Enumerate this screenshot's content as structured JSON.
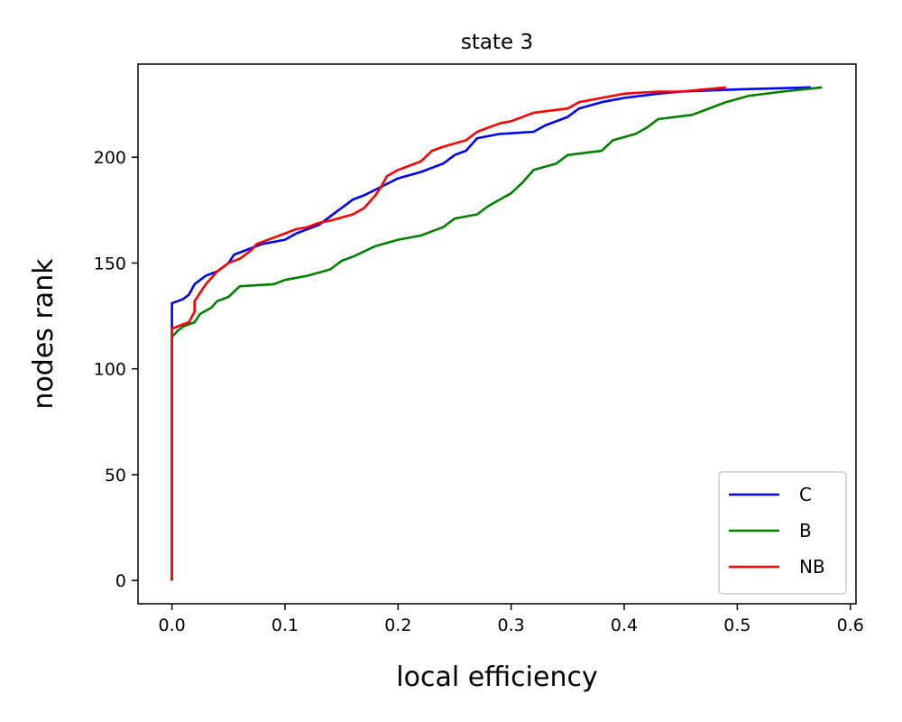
{
  "chart_data": {
    "type": "line",
    "title": "state 3",
    "xlabel": "local efficiency",
    "ylabel": "nodes rank",
    "xlim": [
      -0.03,
      0.605
    ],
    "ylim": [
      -11,
      244
    ],
    "xticks": [
      {
        "value": 0.0,
        "label": "0.0"
      },
      {
        "value": 0.1,
        "label": "0.1"
      },
      {
        "value": 0.2,
        "label": "0.2"
      },
      {
        "value": 0.3,
        "label": "0.3"
      },
      {
        "value": 0.4,
        "label": "0.4"
      },
      {
        "value": 0.5,
        "label": "0.5"
      },
      {
        "value": 0.6,
        "label": "0.6"
      }
    ],
    "yticks": [
      {
        "value": 0,
        "label": "0"
      },
      {
        "value": 50,
        "label": "50"
      },
      {
        "value": 100,
        "label": "100"
      },
      {
        "value": 150,
        "label": "150"
      },
      {
        "value": 200,
        "label": "200"
      }
    ],
    "grid": false,
    "legend": "lower-right",
    "series": [
      {
        "name": "C",
        "color": "#0000ff",
        "points": [
          [
            0,
            0
          ],
          [
            0,
            120
          ],
          [
            0,
            131
          ],
          [
            0.005,
            132
          ],
          [
            0.01,
            133
          ],
          [
            0.015,
            135
          ],
          [
            0.02,
            140
          ],
          [
            0.025,
            142
          ],
          [
            0.03,
            144
          ],
          [
            0.04,
            146
          ],
          [
            0.05,
            150
          ],
          [
            0.055,
            154
          ],
          [
            0.07,
            157
          ],
          [
            0.08,
            159
          ],
          [
            0.1,
            161
          ],
          [
            0.11,
            164
          ],
          [
            0.12,
            166
          ],
          [
            0.13,
            168
          ],
          [
            0.14,
            172
          ],
          [
            0.15,
            176
          ],
          [
            0.16,
            180
          ],
          [
            0.17,
            182
          ],
          [
            0.185,
            186
          ],
          [
            0.2,
            190
          ],
          [
            0.22,
            193
          ],
          [
            0.24,
            197
          ],
          [
            0.25,
            201
          ],
          [
            0.26,
            203
          ],
          [
            0.27,
            209
          ],
          [
            0.29,
            211
          ],
          [
            0.32,
            212
          ],
          [
            0.33,
            215
          ],
          [
            0.35,
            219
          ],
          [
            0.36,
            223
          ],
          [
            0.38,
            226
          ],
          [
            0.4,
            228
          ],
          [
            0.43,
            230
          ],
          [
            0.45,
            231
          ],
          [
            0.5,
            232
          ],
          [
            0.565,
            233
          ]
        ]
      },
      {
        "name": "B",
        "color": "#008000",
        "points": [
          [
            0,
            0
          ],
          [
            0,
            115
          ],
          [
            0.005,
            118
          ],
          [
            0.01,
            120
          ],
          [
            0.02,
            122
          ],
          [
            0.025,
            126
          ],
          [
            0.035,
            129
          ],
          [
            0.04,
            132
          ],
          [
            0.05,
            134
          ],
          [
            0.06,
            139
          ],
          [
            0.09,
            140
          ],
          [
            0.1,
            142
          ],
          [
            0.12,
            144
          ],
          [
            0.14,
            147
          ],
          [
            0.15,
            151
          ],
          [
            0.16,
            153
          ],
          [
            0.18,
            158
          ],
          [
            0.2,
            161
          ],
          [
            0.22,
            163
          ],
          [
            0.23,
            165
          ],
          [
            0.24,
            167
          ],
          [
            0.25,
            171
          ],
          [
            0.27,
            173
          ],
          [
            0.28,
            177
          ],
          [
            0.29,
            180
          ],
          [
            0.3,
            183
          ],
          [
            0.31,
            188
          ],
          [
            0.32,
            194
          ],
          [
            0.34,
            197
          ],
          [
            0.35,
            201
          ],
          [
            0.38,
            203
          ],
          [
            0.39,
            208
          ],
          [
            0.41,
            211
          ],
          [
            0.42,
            214
          ],
          [
            0.43,
            218
          ],
          [
            0.46,
            220
          ],
          [
            0.47,
            222
          ],
          [
            0.48,
            224
          ],
          [
            0.49,
            226
          ],
          [
            0.51,
            229
          ],
          [
            0.54,
            231
          ],
          [
            0.575,
            233
          ]
        ]
      },
      {
        "name": "NB",
        "color": "#ff0000",
        "points": [
          [
            0,
            0
          ],
          [
            0,
            119
          ],
          [
            0.01,
            121
          ],
          [
            0.015,
            122
          ],
          [
            0.02,
            127
          ],
          [
            0.02,
            132
          ],
          [
            0.025,
            136
          ],
          [
            0.03,
            140
          ],
          [
            0.035,
            143
          ],
          [
            0.04,
            146
          ],
          [
            0.05,
            150
          ],
          [
            0.06,
            152
          ],
          [
            0.07,
            156
          ],
          [
            0.075,
            159
          ],
          [
            0.09,
            162
          ],
          [
            0.1,
            164
          ],
          [
            0.11,
            166
          ],
          [
            0.12,
            167
          ],
          [
            0.13,
            169
          ],
          [
            0.14,
            170
          ],
          [
            0.16,
            173
          ],
          [
            0.17,
            176
          ],
          [
            0.18,
            182
          ],
          [
            0.185,
            186
          ],
          [
            0.19,
            191
          ],
          [
            0.2,
            194
          ],
          [
            0.21,
            196
          ],
          [
            0.22,
            198
          ],
          [
            0.23,
            203
          ],
          [
            0.24,
            205
          ],
          [
            0.26,
            208
          ],
          [
            0.27,
            212
          ],
          [
            0.29,
            216
          ],
          [
            0.3,
            217
          ],
          [
            0.32,
            221
          ],
          [
            0.35,
            223
          ],
          [
            0.36,
            226
          ],
          [
            0.38,
            228
          ],
          [
            0.4,
            230
          ],
          [
            0.43,
            231
          ],
          [
            0.45,
            231
          ],
          [
            0.49,
            233
          ]
        ]
      }
    ]
  }
}
